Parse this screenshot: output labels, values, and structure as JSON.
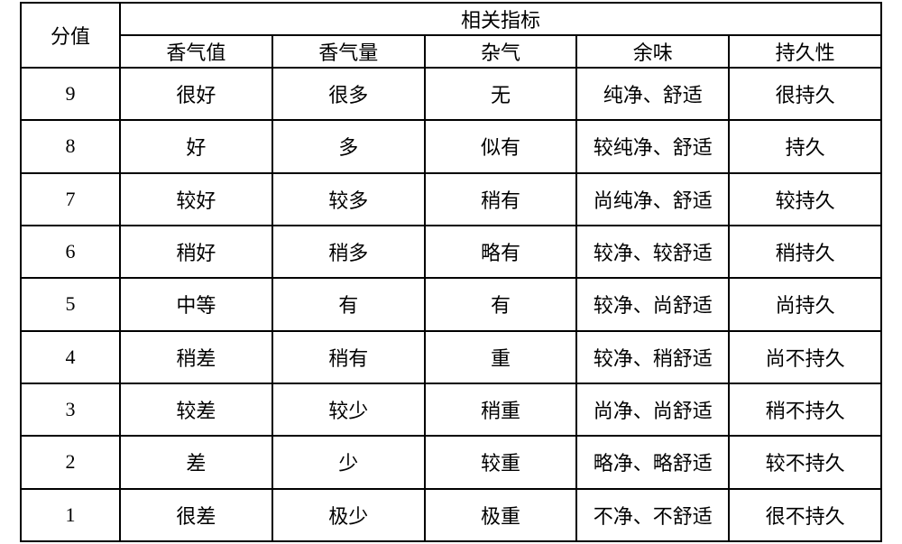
{
  "type": "table",
  "background_color": "#ffffff",
  "border_color": "#000000",
  "border_width": 2,
  "font_family": "SimSun",
  "header_fontsize": 22,
  "cell_fontsize": 22,
  "text_color": "#000000",
  "header": {
    "score": "分值",
    "indicators_group": "相关指标",
    "cols": [
      "香气值",
      "香气量",
      "杂气",
      "余味",
      "持久性"
    ]
  },
  "rows": [
    {
      "score": "9",
      "cells": [
        "很好",
        "很多",
        "无",
        "纯净、舒适",
        "很持久"
      ]
    },
    {
      "score": "8",
      "cells": [
        "好",
        "多",
        "似有",
        "较纯净、舒适",
        "持久"
      ]
    },
    {
      "score": "7",
      "cells": [
        "较好",
        "较多",
        "稍有",
        "尚纯净、舒适",
        "较持久"
      ]
    },
    {
      "score": "6",
      "cells": [
        "稍好",
        "稍多",
        "略有",
        "较净、较舒适",
        "稍持久"
      ]
    },
    {
      "score": "5",
      "cells": [
        "中等",
        "有",
        "有",
        "较净、尚舒适",
        "尚持久"
      ]
    },
    {
      "score": "4",
      "cells": [
        "稍差",
        "稍有",
        "重",
        "较净、稍舒适",
        "尚不持久"
      ]
    },
    {
      "score": "3",
      "cells": [
        "较差",
        "较少",
        "稍重",
        "尚净、尚舒适",
        "稍不持久"
      ]
    },
    {
      "score": "2",
      "cells": [
        "差",
        "少",
        "较重",
        "略净、略舒适",
        "较不持久"
      ]
    },
    {
      "score": "1",
      "cells": [
        "很差",
        "极少",
        "极重",
        "不净、不舒适",
        "很不持久"
      ]
    }
  ]
}
